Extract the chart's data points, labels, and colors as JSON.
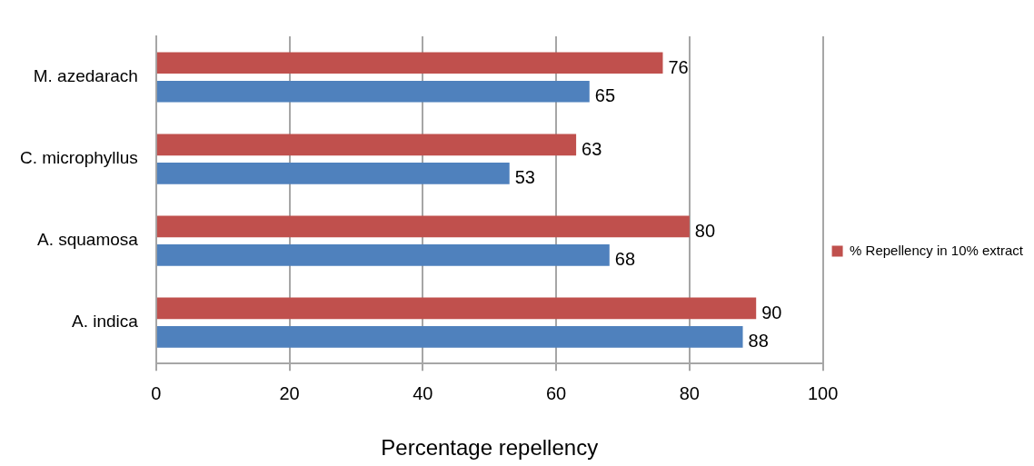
{
  "chart_data": {
    "type": "bar",
    "orientation": "horizontal",
    "xlabel": "Percentage repellency",
    "categories": [
      "M. azedarach",
      "C. microphyllus",
      "A. squamosa",
      "A. indica"
    ],
    "series": [
      {
        "name": "% Repellency in 10% extract",
        "color": "#c0504d",
        "values": [
          76,
          63,
          80,
          90
        ]
      },
      {
        "color": "#4f81bd",
        "values": [
          65,
          53,
          68,
          88
        ]
      }
    ],
    "xlim": [
      0,
      100
    ],
    "xticks": [
      0,
      20,
      40,
      60,
      80,
      100
    ],
    "grid": "x",
    "legend": "right",
    "data_labels": true
  }
}
